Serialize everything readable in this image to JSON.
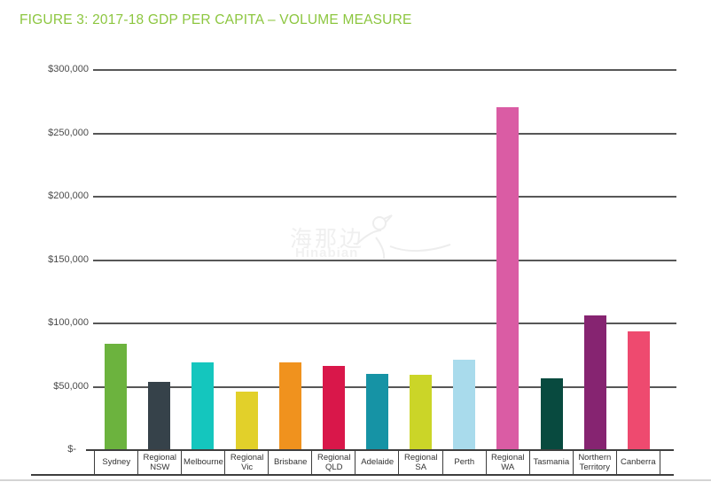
{
  "title": "FIGURE 3: 2017-18 GDP PER CAPITA – VOLUME MEASURE",
  "title_color": "#8CC63F",
  "watermark": {
    "cn": "海那边",
    "en": "Hinabian"
  },
  "chart_data": {
    "type": "bar",
    "title": "2017-18 GDP per capita – volume measure",
    "categories": [
      "Sydney",
      "Regional NSW",
      "Melbourne",
      "Regional Vic",
      "Brisbane",
      "Regional QLD",
      "Adelaide",
      "Regional SA",
      "Perth",
      "Regional WA",
      "Tasmania",
      "Northern Territory",
      "Canberra"
    ],
    "values": [
      84000,
      54000,
      69000,
      46500,
      69000,
      66500,
      60500,
      59500,
      71500,
      271000,
      57000,
      106000,
      94000
    ],
    "colors": [
      "#6CB33E",
      "#36424A",
      "#14C6BE",
      "#E2D02A",
      "#F0921E",
      "#D9174A",
      "#1693A5",
      "#CBD528",
      "#A9DBEC",
      "#DA5CA4",
      "#084A3F",
      "#862471",
      "#EE4A6F"
    ],
    "xlabel": "",
    "ylabel": "",
    "ylim": [
      0,
      300000
    ],
    "ytick_values": [
      300000,
      250000,
      200000,
      150000,
      100000,
      50000,
      0
    ],
    "ytick_labels": [
      "$300,000",
      "$250,000",
      "$200,000",
      "$150,000",
      "$100,000",
      "$50,000",
      "$-"
    ],
    "grid": true,
    "legend": false,
    "gridline_color": "#575757",
    "axis_color": "#3e3e3e"
  }
}
